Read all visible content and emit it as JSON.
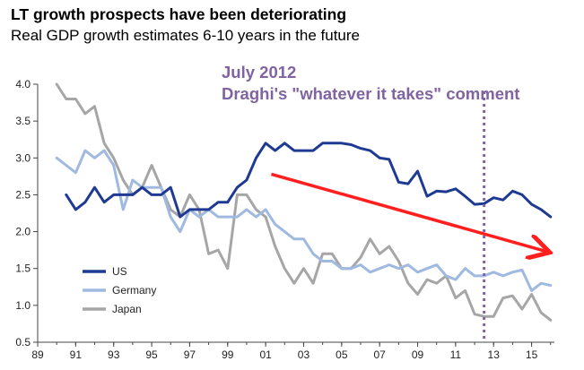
{
  "title": "LT growth prospects have been deteriorating",
  "subtitle": "Real GDP growth estimates 6-10 years in the future",
  "annotation": {
    "line1": "July 2012",
    "line2": "Draghi's \"whatever it takes\" comment",
    "x": 2012.5,
    "color": "#8064a2"
  },
  "chart_data": {
    "type": "line",
    "xlabel": "",
    "ylabel": "",
    "xlim": [
      1989,
      2016.2
    ],
    "ylim": [
      0.5,
      4.0
    ],
    "x_ticks": [
      "89",
      "91",
      "93",
      "95",
      "97",
      "99",
      "01",
      "03",
      "05",
      "07",
      "09",
      "11",
      "13",
      "15"
    ],
    "x_tick_values": [
      1989,
      1991,
      1993,
      1995,
      1997,
      1999,
      2001,
      2003,
      2005,
      2007,
      2009,
      2011,
      2013,
      2015
    ],
    "y_ticks": [
      "0.5",
      "1.0",
      "1.5",
      "2.0",
      "2.5",
      "3.0",
      "3.5",
      "4.0"
    ],
    "y_tick_values": [
      0.5,
      1.0,
      1.5,
      2.0,
      2.5,
      3.0,
      3.5,
      4.0
    ],
    "grid": false,
    "legend_position": "bottom-left",
    "trend_arrow": {
      "from": [
        2001.3,
        2.78
      ],
      "to": [
        2015.8,
        1.73
      ],
      "color": "#ff1f1f"
    },
    "series": [
      {
        "name": "US",
        "color": "#1f3a93",
        "x": [
          1990.5,
          1991,
          1991.5,
          1992,
          1992.5,
          1993,
          1993.5,
          1994,
          1994.5,
          1995,
          1995.5,
          1996,
          1996.5,
          1997,
          1997.5,
          1998,
          1998.5,
          1999,
          1999.5,
          2000,
          2000.5,
          2001,
          2001.5,
          2002,
          2002.5,
          2003,
          2003.5,
          2004,
          2004.5,
          2005,
          2005.5,
          2006,
          2006.5,
          2007,
          2007.5,
          2008,
          2008.5,
          2009,
          2009.5,
          2010,
          2010.5,
          2011,
          2011.5,
          2012,
          2012.5,
          2013,
          2013.5,
          2014,
          2014.5,
          2015,
          2015.5,
          2016
        ],
        "values": [
          2.5,
          2.3,
          2.4,
          2.6,
          2.4,
          2.5,
          2.5,
          2.5,
          2.6,
          2.5,
          2.5,
          2.6,
          2.2,
          2.3,
          2.3,
          2.3,
          2.4,
          2.4,
          2.6,
          2.7,
          3.0,
          3.2,
          3.1,
          3.2,
          3.1,
          3.1,
          3.1,
          3.2,
          3.2,
          3.2,
          3.18,
          3.13,
          3.1,
          3.0,
          2.98,
          2.67,
          2.65,
          2.82,
          2.48,
          2.55,
          2.54,
          2.58,
          2.48,
          2.37,
          2.38,
          2.46,
          2.43,
          2.55,
          2.5,
          2.37,
          2.3,
          2.2
        ]
      },
      {
        "name": "Germany",
        "color": "#9fb9e0",
        "x": [
          1990,
          1990.5,
          1991,
          1991.5,
          1992,
          1992.5,
          1993,
          1993.5,
          1994,
          1994.5,
          1995,
          1995.5,
          1996,
          1996.5,
          1997,
          1997.5,
          1998,
          1998.5,
          1999,
          1999.5,
          2000,
          2000.5,
          2001,
          2001.5,
          2002,
          2002.5,
          2003,
          2003.5,
          2004,
          2004.5,
          2005,
          2005.5,
          2006,
          2006.5,
          2007,
          2007.5,
          2008,
          2008.5,
          2009,
          2009.5,
          2010,
          2010.5,
          2011,
          2011.5,
          2012,
          2012.5,
          2013,
          2013.5,
          2014,
          2014.5,
          2015,
          2015.5,
          2016
        ],
        "values": [
          3.0,
          2.9,
          2.8,
          3.1,
          3.0,
          3.1,
          2.9,
          2.3,
          2.7,
          2.6,
          2.6,
          2.6,
          2.2,
          2.0,
          2.3,
          2.2,
          2.3,
          2.2,
          2.2,
          2.2,
          2.3,
          2.2,
          2.3,
          2.1,
          2.0,
          1.9,
          1.9,
          1.7,
          1.6,
          1.6,
          1.5,
          1.5,
          1.55,
          1.45,
          1.5,
          1.55,
          1.5,
          1.55,
          1.45,
          1.5,
          1.55,
          1.4,
          1.35,
          1.5,
          1.4,
          1.4,
          1.45,
          1.4,
          1.45,
          1.48,
          1.2,
          1.3,
          1.27
        ]
      },
      {
        "name": "Japan",
        "color": "#a6a6a6",
        "x": [
          1990,
          1990.5,
          1991,
          1991.5,
          1992,
          1992.5,
          1993,
          1993.5,
          1994,
          1994.5,
          1995,
          1995.5,
          1996,
          1996.5,
          1997,
          1997.5,
          1998,
          1998.5,
          1999,
          1999.5,
          2000,
          2000.5,
          2001,
          2001.5,
          2002,
          2002.5,
          2003,
          2003.5,
          2004,
          2004.5,
          2005,
          2005.5,
          2006,
          2006.5,
          2007,
          2007.5,
          2008,
          2008.5,
          2009,
          2009.5,
          2010,
          2010.5,
          2011,
          2011.5,
          2012,
          2012.5,
          2013,
          2013.5,
          2014,
          2014.5,
          2015,
          2015.5,
          2016
        ],
        "values": [
          4.0,
          3.8,
          3.8,
          3.6,
          3.7,
          3.2,
          3.0,
          2.7,
          2.5,
          2.6,
          2.9,
          2.6,
          2.3,
          2.2,
          2.5,
          2.3,
          1.7,
          1.75,
          1.5,
          2.5,
          2.5,
          2.3,
          2.2,
          1.8,
          1.5,
          1.3,
          1.5,
          1.3,
          1.7,
          1.7,
          1.5,
          1.5,
          1.65,
          1.9,
          1.7,
          1.8,
          1.6,
          1.3,
          1.15,
          1.35,
          1.3,
          1.4,
          1.1,
          1.2,
          0.88,
          0.85,
          0.85,
          1.1,
          1.13,
          0.95,
          1.15,
          0.9,
          0.8
        ]
      }
    ]
  }
}
